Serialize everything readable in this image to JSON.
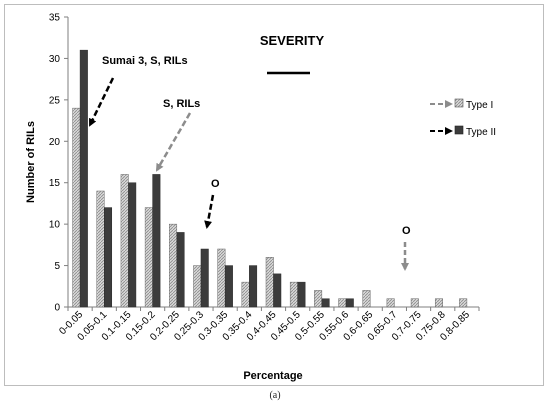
{
  "chart_data": {
    "type": "bar",
    "title": "SEVERITY",
    "xlabel": "Percentage",
    "ylabel": "Number of RILs",
    "ylim": [
      0,
      35
    ],
    "yticks": [
      0,
      5,
      10,
      15,
      20,
      25,
      30,
      35
    ],
    "grid": false,
    "legend_position": "right",
    "categories": [
      "0-0.05",
      "0.05-0.1",
      "0.1-0.15",
      "0.15-0.2",
      "0.2-0.25",
      "0.25-0.3",
      "0.3-0.35",
      "0.35-0.4",
      "0.4-0.45",
      "0.45-0.5",
      "0.5-0.55",
      "0.55-0.6",
      "0.6-0.65",
      "0.65-0.7",
      "0.7-0.75",
      "0.75-0.8",
      "0.8-0.85"
    ],
    "series": [
      {
        "name": "Type I",
        "values": [
          24,
          14,
          16,
          12,
          10,
          5,
          7,
          3,
          6,
          3,
          2,
          1,
          2,
          1,
          1,
          1,
          1
        ],
        "color": "#bfbfbf",
        "pattern": "hatched"
      },
      {
        "name": "Type II",
        "values": [
          31,
          12,
          15,
          16,
          9,
          7,
          5,
          5,
          4,
          3,
          1,
          1,
          0,
          0,
          0,
          0,
          0
        ],
        "color": "#3c3c3c",
        "pattern": "solid"
      }
    ],
    "annotations": [
      {
        "text": "Sumai 3, S, RILs",
        "target_category": "0-0.05",
        "target_value": 22,
        "arrow": "black-dashed"
      },
      {
        "text": "S, RILs",
        "target_category": "0.15-0.2",
        "target_value": 16.5,
        "arrow": "gray-dashed"
      },
      {
        "text": "O",
        "target_category": "0.25-0.3",
        "target_value": 9.5,
        "arrow": "black-dashed"
      },
      {
        "text": "O",
        "target_category": "0.65-0.7",
        "target_value": 4,
        "arrow": "gray-dashed"
      }
    ]
  },
  "caption": "(a)"
}
